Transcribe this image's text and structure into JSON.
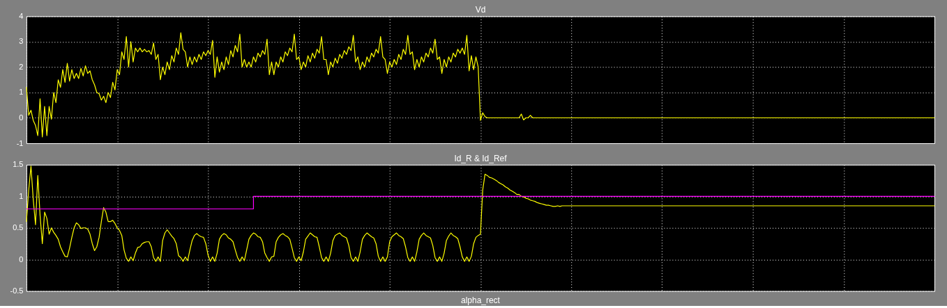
{
  "chart_data": [
    {
      "type": "line",
      "title": "Vd",
      "tick_labels": "y",
      "grid": true,
      "ylim": [
        -1,
        4
      ],
      "yticks": [
        -1,
        0,
        1,
        2,
        3,
        4
      ],
      "categories": [
        null,
        null,
        null,
        null,
        null,
        null,
        null,
        null,
        null,
        null,
        null,
        null,
        null,
        null,
        null,
        null,
        null,
        null,
        null,
        null,
        null,
        null,
        null,
        null,
        null,
        null,
        null,
        null,
        null,
        null,
        null,
        null,
        null,
        null,
        null,
        null,
        null,
        null,
        null,
        null,
        null,
        null,
        null,
        null,
        null,
        null,
        null,
        null,
        null,
        null,
        null,
        null,
        null,
        null,
        null,
        null,
        null,
        null,
        null,
        null,
        null,
        null,
        null,
        null,
        null,
        null,
        null,
        null,
        null,
        null,
        null,
        null,
        null,
        null,
        null,
        null,
        null,
        null,
        null,
        null,
        null,
        null,
        null,
        null,
        null,
        null,
        null,
        null,
        null,
        null,
        null,
        null,
        null,
        null,
        null,
        null,
        null,
        null,
        null,
        null,
        null,
        null,
        null,
        null,
        null,
        null,
        null,
        null,
        null,
        null,
        null,
        null,
        null,
        null,
        null,
        null,
        null,
        null,
        null,
        null,
        null,
        null,
        null,
        null,
        null,
        null,
        null,
        null,
        null,
        null,
        null,
        null,
        null,
        null,
        null,
        null,
        null,
        null,
        null,
        null,
        null,
        null,
        null,
        null,
        null,
        null,
        null,
        null,
        null,
        null,
        null,
        null,
        null,
        null,
        null,
        null,
        null,
        null,
        null,
        null,
        null,
        null,
        null,
        null,
        null,
        null,
        null,
        null,
        null,
        null,
        null,
        null,
        null,
        null,
        null,
        null,
        null,
        null,
        null,
        null,
        null,
        null,
        null,
        null,
        null,
        null,
        null,
        null,
        null,
        null,
        null,
        null,
        null,
        null,
        null,
        null,
        null,
        null,
        null,
        null,
        null,
        null,
        null,
        null,
        null,
        null,
        null,
        null,
        null,
        null,
        null,
        null,
        null,
        null,
        null,
        null,
        null,
        null,
        null,
        null,
        null,
        null,
        null,
        null,
        null,
        null,
        null,
        null,
        null,
        null,
        null,
        null,
        null,
        null,
        null,
        null,
        null,
        null,
        null,
        null,
        null,
        null,
        null,
        null,
        null,
        null,
        null,
        null,
        null,
        null,
        null,
        null,
        null,
        null,
        null,
        null,
        null,
        null,
        null,
        null,
        null,
        null,
        null,
        null,
        null,
        null,
        null,
        null,
        null,
        null,
        null,
        null,
        null,
        null,
        null,
        null,
        null,
        null,
        null,
        null,
        null,
        null,
        null,
        null,
        null,
        null,
        null,
        null,
        null,
        null,
        null,
        null,
        null,
        null,
        null,
        null,
        null,
        null,
        null,
        null,
        null,
        null,
        null,
        null,
        null,
        null,
        null,
        null,
        null,
        null,
        null,
        null,
        null,
        null,
        null,
        null,
        null,
        null,
        null,
        null,
        null,
        null,
        null,
        null,
        null,
        null,
        null,
        null,
        null,
        null,
        null,
        null,
        null,
        null,
        null,
        null,
        null,
        null,
        null,
        null,
        null,
        null,
        null,
        null,
        null,
        null,
        null,
        null,
        null,
        null,
        null,
        null,
        null,
        null,
        null,
        null,
        null,
        null,
        null,
        null,
        null,
        null,
        null,
        null,
        null,
        null,
        null,
        null,
        null,
        null,
        null,
        null,
        null,
        null,
        null,
        null,
        null,
        null,
        null,
        null,
        null,
        null,
        null,
        null,
        null,
        null,
        null,
        null,
        null,
        null,
        null,
        null,
        null,
        null,
        null,
        null,
        null,
        null,
        null,
        null,
        null
      ],
      "series": [
        {
          "color": "#ffff00",
          "values": [
            1.2,
            0.1,
            0.3,
            -0.1,
            -0.3,
            -0.7,
            0.75,
            -0.75,
            0.45,
            -0.7,
            0.45,
            -0.05,
            1.0,
            0.6,
            1.5,
            1.2,
            1.9,
            1.4,
            2.15,
            1.45,
            1.9,
            1.55,
            1.75,
            1.55,
            1.95,
            1.65,
            2.05,
            1.75,
            1.85,
            1.5,
            1.3,
            1.0,
            0.95,
            0.7,
            0.85,
            0.6,
            1.0,
            0.8,
            1.4,
            1.1,
            1.9,
            1.7,
            2.6,
            2.3,
            3.2,
            2.0,
            3.0,
            2.2,
            2.75,
            2.6,
            2.75,
            2.6,
            2.7,
            2.6,
            2.65,
            2.5,
            2.95,
            2.3,
            2.5,
            1.5,
            2.0,
            1.7,
            2.2,
            1.9,
            2.45,
            2.2,
            2.75,
            2.5,
            3.35,
            2.7,
            2.6,
            2.0,
            2.4,
            2.1,
            2.4,
            2.2,
            2.5,
            2.3,
            2.6,
            2.45,
            2.65,
            2.5,
            3.05,
            1.6,
            2.4,
            1.8,
            2.2,
            1.9,
            2.4,
            2.1,
            2.65,
            2.4,
            2.85,
            2.6,
            3.3,
            2.0,
            2.3,
            2.0,
            2.2,
            2.0,
            2.4,
            2.2,
            2.55,
            2.4,
            2.65,
            2.5,
            3.1,
            1.7,
            2.2,
            1.7,
            2.2,
            2.0,
            2.4,
            2.2,
            2.6,
            2.45,
            2.75,
            2.6,
            3.3,
            2.3,
            2.4,
            1.9,
            2.2,
            2.0,
            2.45,
            2.2,
            2.55,
            2.35,
            2.7,
            2.55,
            3.2,
            2.3,
            2.3,
            1.7,
            2.2,
            2.0,
            2.35,
            2.15,
            2.5,
            2.35,
            2.65,
            2.5,
            2.8,
            2.65,
            3.25,
            2.2,
            2.4,
            1.9,
            2.2,
            2.0,
            2.4,
            2.2,
            2.55,
            2.4,
            2.7,
            2.55,
            3.2,
            2.4,
            2.3,
            1.75,
            2.2,
            2.0,
            2.3,
            2.1,
            2.5,
            2.3,
            2.7,
            2.5,
            3.25,
            2.5,
            2.6,
            1.9,
            2.3,
            2.0,
            2.4,
            2.2,
            2.55,
            2.4,
            2.75,
            2.55,
            3.1,
            2.3,
            2.4,
            1.75,
            2.3,
            2.0,
            2.4,
            2.2,
            2.55,
            2.4,
            2.7,
            2.55,
            2.75,
            2.5,
            3.25,
            1.85,
            2.45,
            1.9,
            2.4,
            2.0,
            -0.1,
            0.2,
            0.05,
            0,
            0,
            0,
            0,
            0,
            0,
            0,
            0,
            0,
            0,
            0,
            0,
            0,
            0,
            0,
            0.15,
            -0.08,
            0,
            0,
            0.1,
            0,
            0,
            0,
            0,
            0,
            0,
            0,
            0,
            0,
            0,
            0,
            0,
            0,
            0,
            0,
            0,
            0,
            0,
            0,
            0,
            0,
            0,
            0,
            0,
            0,
            0,
            0,
            0,
            0,
            0,
            0,
            0,
            0,
            0,
            0,
            0,
            0,
            0,
            0,
            0,
            0,
            0,
            0,
            0,
            0,
            0,
            0,
            0,
            0,
            0,
            0,
            0,
            0,
            0,
            0,
            0,
            0,
            0,
            0,
            0,
            0,
            0,
            0,
            0,
            0,
            0,
            0,
            0,
            0,
            0,
            0,
            0,
            0,
            0,
            0,
            0,
            0,
            0,
            0,
            0,
            0,
            0,
            0,
            0,
            0,
            0,
            0,
            0,
            0,
            0,
            0,
            0,
            0,
            0,
            0,
            0,
            0,
            0,
            0,
            0,
            0,
            0,
            0,
            0,
            0,
            0,
            0,
            0,
            0,
            0,
            0,
            0,
            0,
            0,
            0,
            0,
            0,
            0,
            0,
            0,
            0,
            0,
            0,
            0,
            0,
            0,
            0,
            0,
            0,
            0,
            0,
            0,
            0,
            0,
            0,
            0,
            0,
            0,
            0,
            0,
            0,
            0,
            0,
            0,
            0,
            0,
            0,
            0,
            0,
            0,
            0,
            0,
            0,
            0,
            0,
            0,
            0,
            0,
            0,
            0,
            0,
            0,
            0,
            0,
            0,
            0,
            0,
            0,
            0,
            0,
            0,
            0,
            0,
            0,
            0,
            0,
            0,
            0
          ]
        }
      ]
    },
    {
      "type": "line",
      "title": "Id_R & Id_Ref",
      "tick_labels": "y",
      "grid": true,
      "ylim": [
        -0.5,
        1.5
      ],
      "yticks": [
        -0.5,
        0,
        0.5,
        1,
        1.5
      ],
      "annotations": [
        "alpha_rect"
      ],
      "categories": [
        null,
        null,
        null,
        null,
        null,
        null,
        null,
        null,
        null,
        null,
        null,
        null,
        null,
        null,
        null,
        null,
        null,
        null,
        null,
        null,
        null,
        null,
        null,
        null,
        null,
        null,
        null,
        null,
        null,
        null,
        null,
        null,
        null,
        null,
        null,
        null,
        null,
        null,
        null,
        null,
        null,
        null,
        null,
        null,
        null,
        null,
        null,
        null,
        null,
        null,
        null,
        null,
        null,
        null,
        null,
        null,
        null,
        null,
        null,
        null,
        null,
        null,
        null,
        null,
        null,
        null,
        null,
        null,
        null,
        null,
        null,
        null,
        null,
        null,
        null,
        null,
        null,
        null,
        null,
        null,
        null,
        null,
        null,
        null,
        null,
        null,
        null,
        null,
        null,
        null,
        null,
        null,
        null,
        null,
        null,
        null,
        null,
        null,
        null,
        null,
        null,
        null,
        null,
        null,
        null,
        null,
        null,
        null,
        null,
        null,
        null,
        null,
        null,
        null,
        null,
        null,
        null,
        null,
        null,
        null,
        null,
        null,
        null,
        null,
        null,
        null,
        null,
        null,
        null,
        null,
        null,
        null,
        null,
        null,
        null,
        null,
        null,
        null,
        null,
        null,
        null,
        null,
        null,
        null,
        null,
        null,
        null,
        null,
        null,
        null,
        null,
        null,
        null,
        null,
        null,
        null,
        null,
        null,
        null,
        null,
        null,
        null,
        null,
        null,
        null,
        null,
        null,
        null,
        null,
        null,
        null,
        null,
        null,
        null,
        null,
        null,
        null,
        null,
        null,
        null,
        null,
        null,
        null,
        null,
        null,
        null,
        null,
        null,
        null,
        null,
        null,
        null,
        null,
        null,
        null,
        null,
        null,
        null,
        null,
        null,
        null,
        null,
        null,
        null,
        null,
        null,
        null,
        null,
        null,
        null,
        null,
        null,
        null,
        null,
        null,
        null,
        null,
        null,
        null,
        null,
        null,
        null,
        null,
        null,
        null,
        null,
        null,
        null,
        null,
        null,
        null,
        null,
        null,
        null,
        null,
        null,
        null,
        null,
        null,
        null,
        null,
        null,
        null,
        null,
        null,
        null,
        null,
        null,
        null,
        null,
        null,
        null,
        null,
        null,
        null,
        null,
        null,
        null,
        null,
        null,
        null,
        null,
        null,
        null,
        null,
        null,
        null,
        null,
        null,
        null,
        null,
        null,
        null,
        null,
        null,
        null,
        null,
        null,
        null,
        null,
        null,
        null,
        null,
        null,
        null,
        null,
        null,
        null,
        null,
        null,
        null,
        null,
        null,
        null,
        null,
        null,
        null,
        null,
        null,
        null,
        null,
        null,
        null,
        null,
        null,
        null,
        null,
        null,
        null,
        null,
        null,
        null,
        null,
        null,
        null,
        null,
        null,
        null,
        null,
        null,
        null,
        null,
        null,
        null,
        null,
        null,
        null,
        null,
        null,
        null,
        null,
        null,
        null,
        null,
        null,
        null,
        null,
        null,
        null,
        null,
        null,
        null,
        null,
        null,
        null,
        null,
        null,
        null,
        null,
        null,
        null,
        null,
        null,
        null,
        null,
        null,
        null,
        null,
        null,
        null,
        null,
        null,
        null,
        null,
        null,
        null,
        null,
        null,
        null,
        null,
        null,
        null,
        null,
        null,
        null,
        null,
        null,
        null,
        null,
        null,
        null,
        null,
        null,
        null,
        null,
        null,
        null,
        null,
        null,
        null,
        null,
        null,
        null,
        null,
        null,
        null,
        null,
        null,
        null,
        null,
        null
      ],
      "series": [
        {
          "color": "#ffff00",
          "values": [
            0.6,
            1.1,
            1.48,
            0.95,
            0.55,
            1.33,
            0.7,
            0.25,
            0.75,
            0.65,
            0.4,
            0.5,
            0.43,
            0.38,
            0.32,
            0.2,
            0.12,
            0.05,
            0.04,
            0.18,
            0.35,
            0.5,
            0.58,
            0.55,
            0.49,
            0.5,
            0.5,
            0.48,
            0.4,
            0.25,
            0.14,
            0.2,
            0.35,
            0.6,
            0.82,
            0.75,
            0.6,
            0.6,
            0.62,
            0.57,
            0.5,
            0.46,
            0.38,
            0.15,
            0.02,
            -0.03,
            0.04,
            -0.02,
            0.1,
            0.19,
            0.2,
            0.25,
            0.27,
            0.28,
            0.28,
            0.2,
            0.03,
            -0.03,
            0.04,
            -0.03,
            0.3,
            0.42,
            0.47,
            0.42,
            0.37,
            0.33,
            0.25,
            0.06,
            0.03,
            -0.03,
            0.04,
            -0.02,
            0.15,
            0.3,
            0.38,
            0.41,
            0.38,
            0.36,
            0.35,
            0.25,
            0.07,
            -0.03,
            0.04,
            -0.03,
            0.1,
            0.32,
            0.38,
            0.41,
            0.39,
            0.34,
            0.32,
            0.28,
            0.15,
            0.03,
            -0.03,
            0.04,
            -0.02,
            0.15,
            0.32,
            0.38,
            0.42,
            0.4,
            0.36,
            0.35,
            0.28,
            0.1,
            0.03,
            -0.03,
            0.04,
            0.05,
            0.28,
            0.35,
            0.39,
            0.41,
            0.38,
            0.36,
            0.32,
            0.18,
            0.03,
            -0.03,
            0.04,
            -0.02,
            0.12,
            0.32,
            0.37,
            0.42,
            0.39,
            0.36,
            0.35,
            0.2,
            0.03,
            -0.03,
            0.04,
            -0.03,
            0.1,
            0.3,
            0.38,
            0.4,
            0.42,
            0.38,
            0.36,
            0.34,
            0.22,
            0.03,
            -0.03,
            0.04,
            -0.03,
            0.12,
            0.32,
            0.38,
            0.42,
            0.39,
            0.36,
            0.34,
            0.25,
            0.05,
            -0.03,
            0.04,
            -0.03,
            0.04,
            0.28,
            0.36,
            0.39,
            0.42,
            0.38,
            0.36,
            0.33,
            0.2,
            0.03,
            -0.03,
            0.04,
            -0.03,
            0.12,
            0.32,
            0.38,
            0.42,
            0.38,
            0.36,
            0.34,
            0.22,
            0.03,
            -0.03,
            0.04,
            -0.03,
            0.1,
            0.3,
            0.37,
            0.42,
            0.38,
            0.36,
            0.33,
            0.2,
            0.04,
            -0.03,
            0.04,
            -0.03,
            0.05,
            0.25,
            0.35,
            0.38,
            0.4,
            1.1,
            1.35,
            1.33,
            1.3,
            1.29,
            1.27,
            1.25,
            1.22,
            1.2,
            1.18,
            1.15,
            1.13,
            1.1,
            1.08,
            1.06,
            1.03,
            1.03,
            1.0,
            0.99,
            0.97,
            0.96,
            0.94,
            0.93,
            0.92,
            0.9,
            0.89,
            0.88,
            0.87,
            0.86,
            0.86,
            0.85,
            0.84,
            0.84,
            0.85,
            0.84,
            0.85,
            0.85,
            0.85,
            0.85,
            0.85,
            0.85,
            0.85,
            0.85,
            0.85,
            0.85,
            0.85,
            0.85,
            0.85,
            0.85,
            0.85,
            0.85,
            0.85,
            0.85,
            0.85,
            0.85,
            0.85,
            0.85,
            0.85,
            0.85,
            0.85,
            0.85,
            0.85,
            0.85,
            0.85,
            0.85,
            0.85,
            0.85,
            0.85,
            0.85,
            0.85,
            0.85,
            0.85,
            0.85,
            0.85,
            0.85,
            0.85,
            0.85,
            0.85,
            0.85,
            0.85,
            0.85,
            0.85,
            0.85,
            0.85,
            0.85,
            0.85,
            0.85,
            0.85,
            0.85,
            0.85,
            0.85,
            0.85,
            0.85,
            0.85,
            0.85,
            0.85,
            0.85,
            0.85,
            0.85,
            0.85,
            0.85,
            0.85,
            0.85,
            0.85,
            0.85,
            0.85,
            0.85,
            0.85,
            0.85,
            0.85,
            0.85,
            0.85,
            0.85,
            0.85,
            0.85,
            0.85,
            0.85,
            0.85,
            0.85,
            0.85,
            0.85,
            0.85,
            0.85,
            0.85,
            0.85,
            0.85,
            0.85,
            0.85,
            0.85,
            0.85,
            0.85,
            0.85,
            0.85,
            0.85,
            0.85,
            0.85,
            0.85,
            0.85,
            0.85,
            0.85,
            0.85,
            0.85,
            0.85,
            0.85,
            0.85,
            0.85,
            0.85,
            0.85,
            0.85,
            0.85,
            0.85,
            0.85,
            0.85,
            0.85,
            0.85,
            0.85,
            0.85,
            0.85,
            0.85,
            0.85,
            0.85,
            0.85,
            0.85,
            0.85,
            0.85,
            0.85,
            0.85,
            0.85,
            0.85,
            0.85,
            0.85,
            0.85,
            0.85,
            0.85,
            0.85,
            0.85,
            0.85,
            0.85,
            0.85,
            0.85,
            0.85,
            0.85,
            0.85,
            0.85,
            0.85,
            0.85,
            0.85,
            0.85,
            0.85,
            0.85,
            0.85,
            0.85,
            0.85,
            0.85,
            0.85,
            0.85,
            0.85,
            0.85,
            0.85,
            0.85
          ]
        },
        {
          "type": "step",
          "color": "#ff00ff",
          "values": [
            0.8,
            0.8,
            0.8,
            0.8,
            0.8,
            0.8,
            0.8,
            0.8,
            0.8,
            0.8,
            0.8,
            0.8,
            0.8,
            0.8,
            0.8,
            0.8,
            0.8,
            0.8,
            0.8,
            0.8,
            0.8,
            0.8,
            0.8,
            0.8,
            0.8,
            0.8,
            0.8,
            0.8,
            0.8,
            0.8,
            0.8,
            0.8,
            0.8,
            0.8,
            0.8,
            0.8,
            0.8,
            0.8,
            0.8,
            0.8,
            0.8,
            0.8,
            0.8,
            0.8,
            0.8,
            0.8,
            0.8,
            0.8,
            0.8,
            0.8,
            0.8,
            0.8,
            0.8,
            0.8,
            0.8,
            0.8,
            0.8,
            0.8,
            0.8,
            0.8,
            0.8,
            0.8,
            0.8,
            0.8,
            0.8,
            0.8,
            0.8,
            0.8,
            0.8,
            0.8,
            0.8,
            0.8,
            0.8,
            0.8,
            0.8,
            0.8,
            0.8,
            0.8,
            0.8,
            0.8,
            0.8,
            0.8,
            0.8,
            0.8,
            0.8,
            0.8,
            0.8,
            0.8,
            0.8,
            0.8,
            0.8,
            0.8,
            0.8,
            0.8,
            0.8,
            0.8,
            0.8,
            0.8,
            0.8,
            0.8,
            1,
            1,
            1,
            1,
            1,
            1,
            1,
            1,
            1,
            1,
            1,
            1,
            1,
            1,
            1,
            1,
            1,
            1,
            1,
            1,
            1,
            1,
            1,
            1,
            1,
            1,
            1,
            1,
            1,
            1,
            1,
            1,
            1,
            1,
            1,
            1,
            1,
            1,
            1,
            1,
            1,
            1,
            1,
            1,
            1,
            1,
            1,
            1,
            1,
            1,
            1,
            1,
            1,
            1,
            1,
            1,
            1,
            1,
            1,
            1,
            1,
            1,
            1,
            1,
            1,
            1,
            1,
            1,
            1,
            1,
            1,
            1,
            1,
            1,
            1,
            1,
            1,
            1,
            1,
            1,
            1,
            1,
            1,
            1,
            1,
            1,
            1,
            1,
            1,
            1,
            1,
            1,
            1,
            1,
            1,
            1,
            1,
            1,
            1,
            1,
            1,
            1,
            1,
            1,
            1,
            1,
            1,
            1,
            1,
            1,
            1,
            1,
            1,
            1,
            1,
            1,
            1,
            1,
            1,
            1,
            1,
            1,
            1,
            1,
            1,
            1,
            1,
            1,
            1,
            1,
            1,
            1,
            1,
            1,
            1,
            1,
            1,
            1,
            1,
            1,
            1,
            1,
            1,
            1,
            1,
            1,
            1,
            1,
            1,
            1,
            1,
            1,
            1,
            1,
            1,
            1,
            1,
            1,
            1,
            1,
            1,
            1,
            1,
            1,
            1,
            1,
            1,
            1,
            1,
            1,
            1,
            1,
            1,
            1,
            1,
            1,
            1,
            1,
            1,
            1,
            1,
            1,
            1,
            1,
            1,
            1,
            1,
            1,
            1,
            1,
            1,
            1,
            1,
            1,
            1,
            1,
            1,
            1,
            1,
            1,
            1,
            1,
            1,
            1,
            1,
            1,
            1,
            1,
            1,
            1,
            1,
            1,
            1,
            1,
            1,
            1,
            1,
            1,
            1,
            1,
            1,
            1,
            1,
            1,
            1,
            1,
            1,
            1,
            1,
            1,
            1,
            1,
            1,
            1,
            1,
            1,
            1,
            1,
            1,
            1,
            1,
            1,
            1,
            1,
            1,
            1,
            1,
            1,
            1,
            1,
            1,
            1,
            1,
            1,
            1,
            1,
            1,
            1,
            1,
            1,
            1,
            1,
            1,
            1,
            1,
            1,
            1,
            1,
            1,
            1,
            1,
            1,
            1,
            1,
            1,
            1,
            1,
            1,
            1,
            1,
            1,
            1,
            1,
            1,
            1,
            1,
            1,
            1,
            1,
            1,
            1,
            1,
            1,
            1,
            1,
            1,
            1,
            1,
            1,
            1,
            1
          ]
        }
      ]
    }
  ]
}
